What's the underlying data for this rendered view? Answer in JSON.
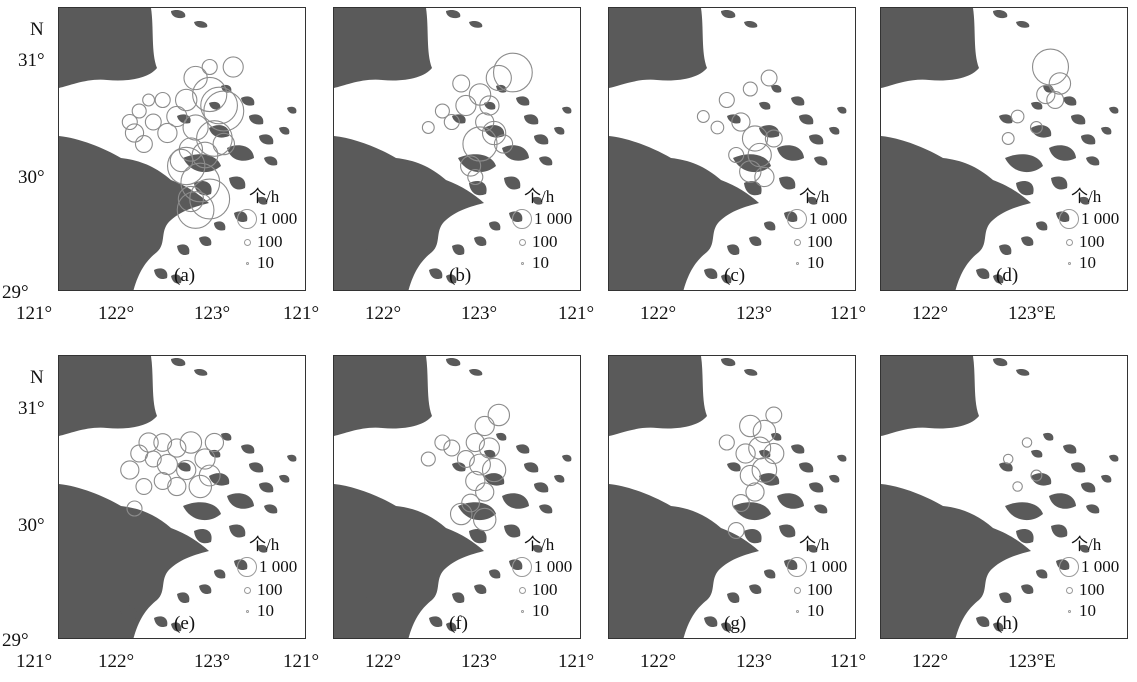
{
  "axis": {
    "north_label": "N",
    "lat_labels": [
      "31°",
      "30°",
      "29°"
    ],
    "lon_labels_row1": [
      "121°",
      "122°",
      "123°",
      "121°",
      "122°",
      "123°",
      "121°",
      "122°",
      "123°",
      "121°",
      "122°",
      "123°E"
    ],
    "lon_labels_row2": [
      "121°",
      "122°",
      "123°",
      "121°",
      "122°",
      "123°",
      "121°",
      "122°",
      "123°",
      "121°",
      "122°",
      "123°E"
    ]
  },
  "legend": {
    "unit": "个/h",
    "values": [
      "1 000",
      "100",
      "10"
    ]
  },
  "colors": {
    "land": "#5a5a5a",
    "circle": "#8c8c8c",
    "frame": "#333333"
  },
  "panels": [
    {
      "label": "(a)",
      "circles": [
        [
          122.4,
          30.75,
          60
        ],
        [
          122.55,
          30.6,
          120
        ],
        [
          122.7,
          30.45,
          300
        ],
        [
          122.65,
          30.5,
          180
        ],
        [
          122.3,
          30.55,
          40
        ],
        [
          122.2,
          30.4,
          30
        ],
        [
          122.4,
          30.3,
          90
        ],
        [
          122.6,
          30.2,
          150
        ],
        [
          122.35,
          30.1,
          60
        ],
        [
          122.5,
          30.05,
          100
        ],
        [
          122.3,
          29.95,
          200
        ],
        [
          122.45,
          29.8,
          250
        ],
        [
          122.55,
          29.65,
          300
        ],
        [
          122.4,
          29.55,
          180
        ],
        [
          122.35,
          29.65,
          90
        ],
        [
          121.7,
          30.35,
          10
        ],
        [
          121.75,
          30.25,
          20
        ],
        [
          121.8,
          30.45,
          8
        ],
        [
          121.85,
          30.15,
          15
        ],
        [
          121.95,
          30.35,
          12
        ],
        [
          122.05,
          30.55,
          10
        ],
        [
          122.1,
          30.25,
          25
        ],
        [
          121.9,
          30.55,
          5
        ],
        [
          122.8,
          30.85,
          30
        ],
        [
          122.55,
          30.85,
          10
        ],
        [
          122.7,
          30.15,
          40
        ],
        [
          122.25,
          30.0,
          50
        ]
      ]
    },
    {
      "label": "(b)",
      "circles": [
        [
          122.85,
          30.8,
          250
        ],
        [
          122.7,
          30.75,
          90
        ],
        [
          122.5,
          30.6,
          40
        ],
        [
          122.35,
          30.5,
          30
        ],
        [
          122.55,
          30.35,
          20
        ],
        [
          122.65,
          30.25,
          60
        ],
        [
          122.5,
          30.15,
          120
        ],
        [
          122.4,
          29.95,
          30
        ],
        [
          122.3,
          30.7,
          15
        ],
        [
          122.2,
          30.35,
          10
        ],
        [
          122.1,
          30.45,
          8
        ],
        [
          122.6,
          30.5,
          25
        ],
        [
          122.75,
          30.15,
          20
        ],
        [
          122.45,
          29.85,
          10
        ],
        [
          121.95,
          30.3,
          5
        ]
      ]
    },
    {
      "label": "(c)",
      "circles": [
        [
          122.5,
          30.2,
          90
        ],
        [
          122.55,
          30.05,
          60
        ],
        [
          122.45,
          29.9,
          40
        ],
        [
          122.6,
          29.85,
          25
        ],
        [
          122.35,
          30.35,
          20
        ],
        [
          122.2,
          30.55,
          10
        ],
        [
          122.65,
          30.75,
          12
        ],
        [
          122.45,
          30.65,
          8
        ],
        [
          122.3,
          30.05,
          10
        ],
        [
          121.95,
          30.4,
          5
        ],
        [
          122.1,
          30.3,
          6
        ],
        [
          122.7,
          30.2,
          15
        ]
      ]
    },
    {
      "label": "(d)",
      "circles": [
        [
          122.75,
          30.85,
          160
        ],
        [
          122.85,
          30.7,
          40
        ],
        [
          122.7,
          30.6,
          20
        ],
        [
          122.8,
          30.55,
          15
        ],
        [
          122.4,
          30.4,
          6
        ],
        [
          122.6,
          30.3,
          5
        ],
        [
          122.3,
          30.2,
          5
        ]
      ]
    },
    {
      "label": "(e)",
      "circles": [
        [
          121.7,
          30.35,
          20
        ],
        [
          121.8,
          30.5,
          15
        ],
        [
          121.9,
          30.6,
          25
        ],
        [
          122.05,
          30.6,
          18
        ],
        [
          121.95,
          30.45,
          12
        ],
        [
          122.1,
          30.4,
          30
        ],
        [
          122.2,
          30.55,
          20
        ],
        [
          122.35,
          30.6,
          40
        ],
        [
          122.5,
          30.45,
          30
        ],
        [
          122.3,
          30.35,
          25
        ],
        [
          122.45,
          30.2,
          50
        ],
        [
          122.55,
          30.3,
          35
        ],
        [
          122.2,
          30.2,
          20
        ],
        [
          122.05,
          30.25,
          15
        ],
        [
          121.85,
          30.2,
          12
        ],
        [
          122.6,
          30.6,
          20
        ],
        [
          121.75,
          30.0,
          10
        ]
      ]
    },
    {
      "label": "(f)",
      "circles": [
        [
          122.7,
          30.85,
          40
        ],
        [
          122.55,
          30.75,
          25
        ],
        [
          122.45,
          30.6,
          20
        ],
        [
          122.6,
          30.55,
          30
        ],
        [
          122.5,
          30.4,
          35
        ],
        [
          122.65,
          30.35,
          60
        ],
        [
          122.45,
          30.25,
          25
        ],
        [
          122.55,
          30.15,
          20
        ],
        [
          122.4,
          30.05,
          18
        ],
        [
          122.3,
          29.95,
          40
        ],
        [
          122.55,
          29.9,
          50
        ],
        [
          122.35,
          30.45,
          15
        ],
        [
          122.2,
          30.55,
          12
        ],
        [
          122.1,
          30.6,
          10
        ],
        [
          121.95,
          30.45,
          8
        ]
      ]
    },
    {
      "label": "(g)",
      "circles": [
        [
          122.45,
          30.75,
          40
        ],
        [
          122.6,
          30.7,
          50
        ],
        [
          122.55,
          30.55,
          45
        ],
        [
          122.7,
          30.5,
          30
        ],
        [
          122.4,
          30.5,
          25
        ],
        [
          122.6,
          30.35,
          80
        ],
        [
          122.45,
          30.3,
          30
        ],
        [
          122.5,
          30.15,
          20
        ],
        [
          122.35,
          30.05,
          15
        ],
        [
          122.3,
          29.8,
          12
        ],
        [
          122.7,
          30.85,
          12
        ],
        [
          122.2,
          30.6,
          10
        ]
      ]
    },
    {
      "label": "(h)",
      "circles": [
        [
          122.3,
          30.45,
          3
        ],
        [
          122.5,
          30.6,
          3
        ],
        [
          122.6,
          30.3,
          4
        ],
        [
          122.4,
          30.2,
          3
        ]
      ]
    }
  ]
}
